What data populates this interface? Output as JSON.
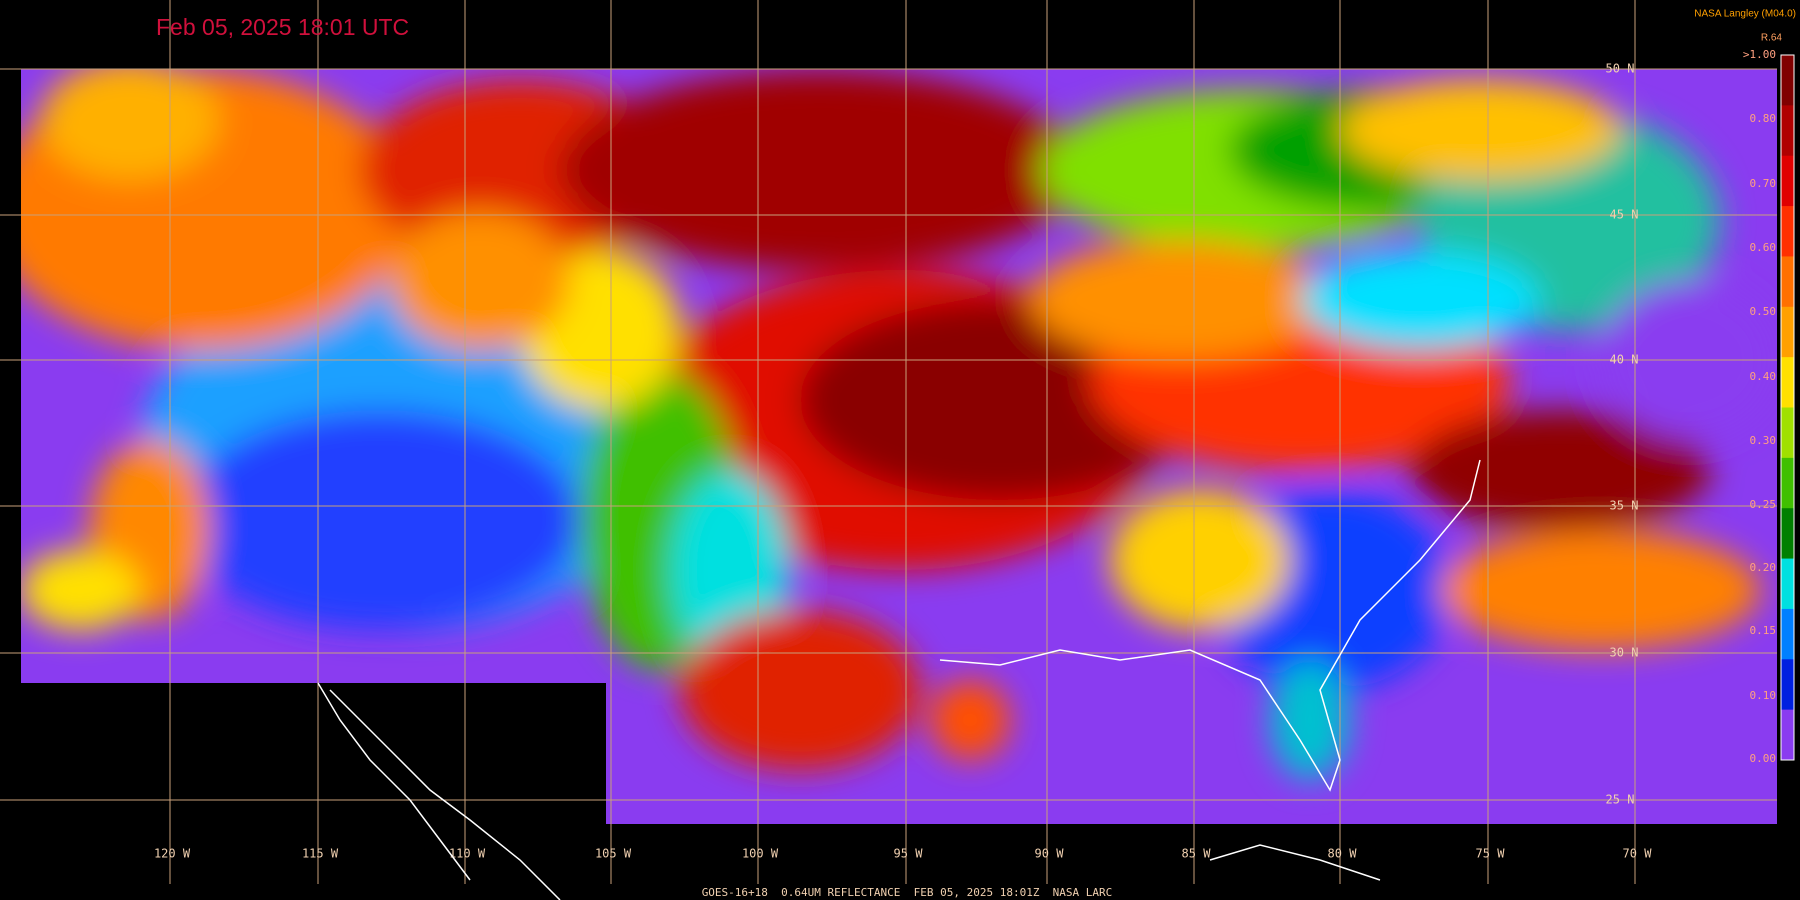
{
  "header": {
    "title": "Feb 05, 2025 18:01 UTC",
    "source": "NASA Langley (M04.0)"
  },
  "colorbar": {
    "title": "R.64",
    "labels": [
      ">1.00",
      "0.80",
      "0.70",
      "0.60",
      "0.50",
      "0.40",
      "0.30",
      "0.25",
      "0.20",
      "0.15",
      "0.10",
      "0.00"
    ]
  },
  "grid": {
    "latitudes": [
      "50 N",
      "45 N",
      "40 N",
      "35 N",
      "30 N",
      "25 N"
    ],
    "longitudes": [
      "120 W",
      "115 W",
      "110 W",
      "105 W",
      "100 W",
      "95 W",
      "90 W",
      "85 W",
      "80 W",
      "75 W",
      "70 W"
    ]
  },
  "footer": "GOES-16+18  0.64UM REFLECTANCE  FEB 05, 2025 18:01Z  NASA LARC"
}
